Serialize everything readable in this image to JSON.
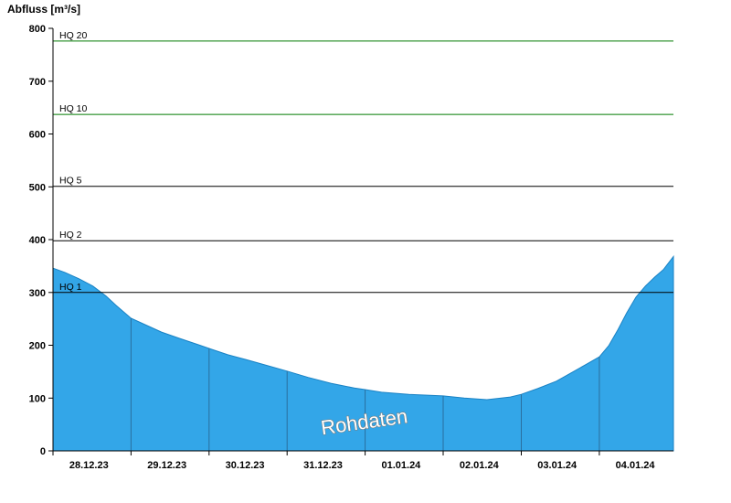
{
  "chart_data": {
    "type": "area",
    "title": "Abfluss [m³/s]",
    "ylabel": "Abfluss [m³/s]",
    "ylim": [
      0,
      800
    ],
    "yticks": [
      0,
      100,
      200,
      300,
      400,
      500,
      600,
      700,
      800
    ],
    "x_range_days": [
      0,
      7.95
    ],
    "x_tick_days": [
      0,
      1,
      2,
      3,
      4,
      5,
      6,
      7
    ],
    "x_labels": [
      {
        "label": "28.12.23",
        "day": 0.46
      },
      {
        "label": "29.12.23",
        "day": 1.46
      },
      {
        "label": "30.12.23",
        "day": 2.46
      },
      {
        "label": "31.12.23",
        "day": 3.46
      },
      {
        "label": "01.01.24",
        "day": 4.46
      },
      {
        "label": "02.01.24",
        "day": 5.46
      },
      {
        "label": "03.01.24",
        "day": 6.46
      },
      {
        "label": "04.01.24",
        "day": 7.46
      }
    ],
    "thresholds": [
      {
        "label": "HQ 20",
        "value": 776,
        "color": "#007A00"
      },
      {
        "label": "HQ 10",
        "value": 637,
        "color": "#007A00"
      },
      {
        "label": "HQ 5",
        "value": 501,
        "color": "#000000"
      },
      {
        "label": "HQ 2",
        "value": 398,
        "color": "#000000"
      },
      {
        "label": "HQ 1",
        "value": 300,
        "color": "#000000"
      }
    ],
    "series": [
      {
        "name": "Rohdaten",
        "points": [
          [
            0.0,
            346
          ],
          [
            0.15,
            338
          ],
          [
            0.33,
            326
          ],
          [
            0.51,
            312
          ],
          [
            0.68,
            293
          ],
          [
            0.82,
            274
          ],
          [
            1.0,
            251
          ],
          [
            1.18,
            239
          ],
          [
            1.39,
            225
          ],
          [
            1.62,
            213
          ],
          [
            1.86,
            201
          ],
          [
            2.0,
            194
          ],
          [
            2.24,
            182
          ],
          [
            2.47,
            173
          ],
          [
            2.71,
            163
          ],
          [
            3.0,
            151
          ],
          [
            3.27,
            139
          ],
          [
            3.56,
            128
          ],
          [
            3.86,
            119
          ],
          [
            4.0,
            116
          ],
          [
            4.21,
            111
          ],
          [
            4.56,
            107
          ],
          [
            5.0,
            104
          ],
          [
            5.27,
            100
          ],
          [
            5.56,
            97
          ],
          [
            5.86,
            102
          ],
          [
            6.0,
            107
          ],
          [
            6.21,
            118
          ],
          [
            6.45,
            132
          ],
          [
            6.68,
            151
          ],
          [
            6.86,
            166
          ],
          [
            7.0,
            178
          ],
          [
            7.12,
            199
          ],
          [
            7.24,
            230
          ],
          [
            7.35,
            261
          ],
          [
            7.47,
            291
          ],
          [
            7.59,
            312
          ],
          [
            7.71,
            329
          ],
          [
            7.82,
            343
          ],
          [
            7.95,
            368
          ]
        ]
      }
    ],
    "day_separators": [
      1,
      2,
      3,
      4,
      5,
      6,
      7
    ],
    "watermark": "Rohdaten",
    "watermark_pos": {
      "day": 4.0,
      "value": 42,
      "rotate_deg": -8
    },
    "colors": {
      "area_fill": "#33A6E8",
      "area_edge": "#1A82C4",
      "separator": "#2A6F9E",
      "axis": "#000000",
      "watermark_fill": "#FFFFFF",
      "watermark_outline": "#777777",
      "background": "#FFFFFF"
    },
    "grid": false,
    "legend": "none"
  }
}
